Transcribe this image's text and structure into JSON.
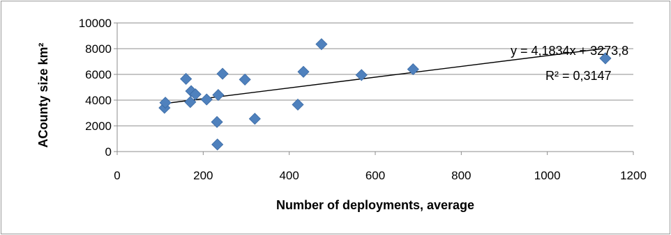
{
  "chart_data": {
    "type": "scatter",
    "title": "",
    "xlabel": "Number of deployments, average",
    "ylabel": "ACounty size km²",
    "xlim": [
      0,
      1200
    ],
    "ylim": [
      0,
      10000
    ],
    "x_ticks": [
      "0",
      "200",
      "400",
      "600",
      "800",
      "1000",
      "1200"
    ],
    "y_ticks": [
      "0",
      "2000",
      "4000",
      "6000",
      "8000",
      "10000"
    ],
    "grid": "horizontal",
    "legend": "none",
    "marker": "diamond",
    "marker_color": "#4f81bd",
    "trendline": {
      "type": "linear",
      "slope": 4.1834,
      "intercept": 3273.8,
      "x_range": [
        110,
        1135
      ],
      "color": "#000000",
      "equation_label": "y = 4,1834x + 3273,8",
      "r2_label": "R² = 0,3147"
    },
    "points": [
      {
        "x": 110,
        "y": 3400
      },
      {
        "x": 112,
        "y": 3800
      },
      {
        "x": 160,
        "y": 5650
      },
      {
        "x": 170,
        "y": 3850
      },
      {
        "x": 172,
        "y": 4700
      },
      {
        "x": 182,
        "y": 4450
      },
      {
        "x": 208,
        "y": 4050
      },
      {
        "x": 232,
        "y": 2300
      },
      {
        "x": 233,
        "y": 550
      },
      {
        "x": 235,
        "y": 4400
      },
      {
        "x": 245,
        "y": 6050
      },
      {
        "x": 297,
        "y": 5600
      },
      {
        "x": 320,
        "y": 2550
      },
      {
        "x": 420,
        "y": 3650
      },
      {
        "x": 433,
        "y": 6200
      },
      {
        "x": 475,
        "y": 8350
      },
      {
        "x": 568,
        "y": 5950
      },
      {
        "x": 688,
        "y": 6400
      },
      {
        "x": 1135,
        "y": 7250
      }
    ]
  }
}
